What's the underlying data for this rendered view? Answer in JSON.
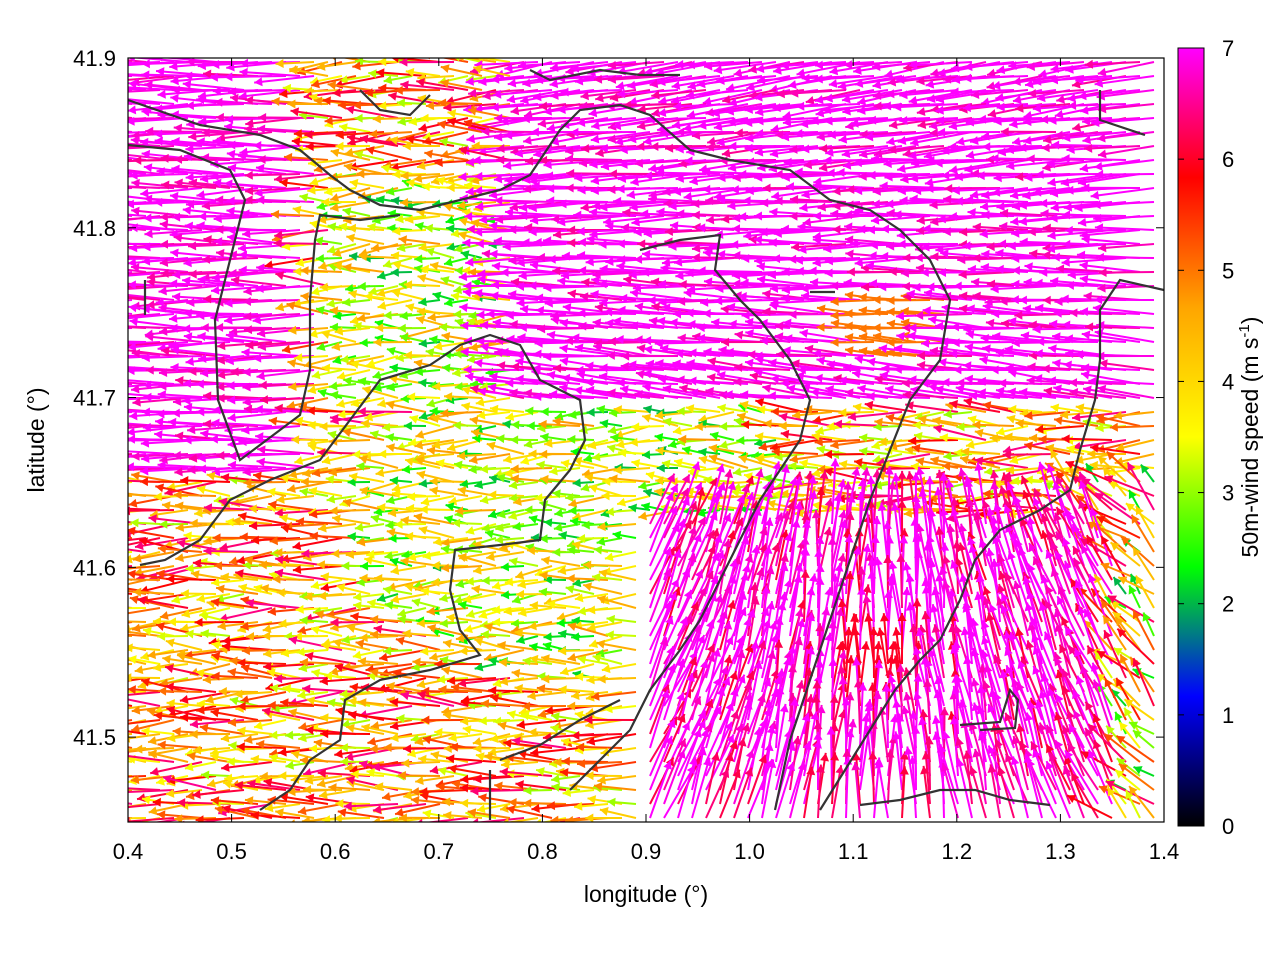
{
  "chart_data": {
    "type": "vector-field-map",
    "title": "",
    "xlabel": "longitude (°)",
    "ylabel": "latitude (°)",
    "xlim": [
      0.4,
      1.4
    ],
    "ylim": [
      41.45,
      41.9
    ],
    "xticks": [
      "0.4",
      "0.5",
      "0.6",
      "0.7",
      "0.8",
      "0.9",
      "1.0",
      "1.1",
      "1.2",
      "1.3",
      "1.4"
    ],
    "yticks": [
      "41.5",
      "41.6",
      "41.7",
      "41.8",
      "41.9"
    ],
    "colorbar": {
      "label_main": "50m-wind speed (m s",
      "label_sup": "-1",
      "label_end": ")",
      "range": [
        0,
        7
      ],
      "ticks": [
        "0",
        "1",
        "2",
        "3",
        "4",
        "5",
        "6",
        "7"
      ],
      "stops": [
        "#000000",
        "#0000ff",
        "#00ff00",
        "#ffff00",
        "#ffa500",
        "#ff0000",
        "#ff00ff"
      ]
    },
    "grid": false,
    "contours_color": "#333333"
  }
}
